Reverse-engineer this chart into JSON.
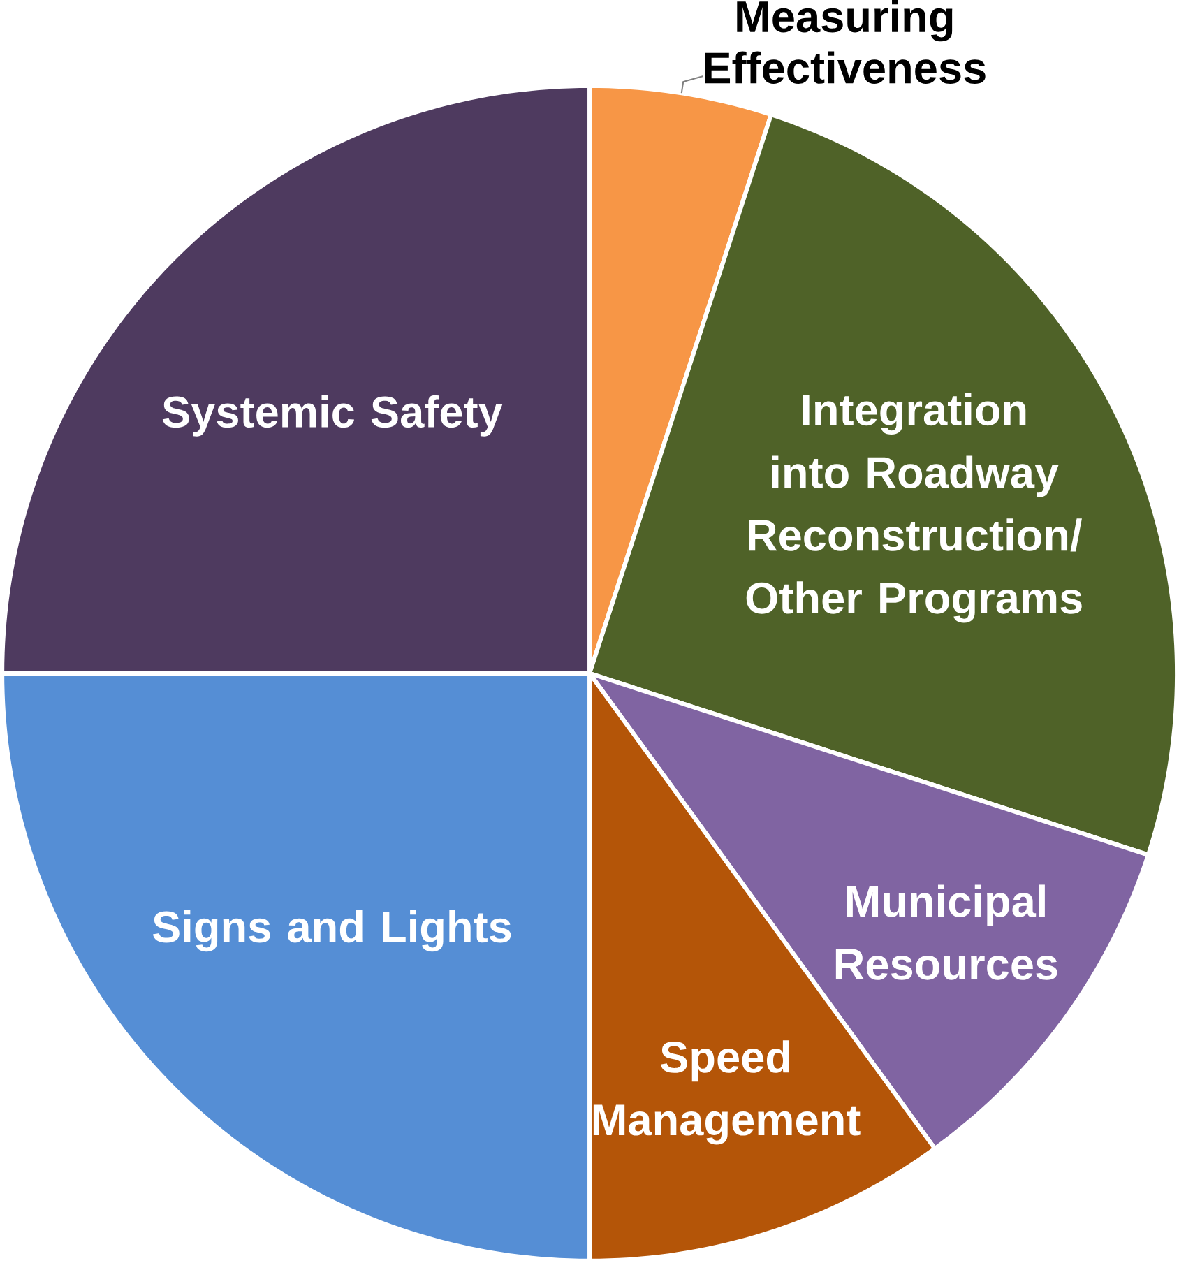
{
  "chart_data": {
    "type": "pie",
    "categories": [
      "Measuring Effectiveness",
      "Integration into Roadway Reconstruction/ Other Programs",
      "Municipal Resources",
      "Speed Management",
      "Signs and Lights",
      "Systemic Safety"
    ],
    "values": [
      5,
      25,
      10,
      10,
      25,
      25
    ],
    "colors": [
      "#f79646",
      "#4f6228",
      "#8064a2",
      "#b45508",
      "#558ed5",
      "#4e3a5f"
    ]
  }
}
